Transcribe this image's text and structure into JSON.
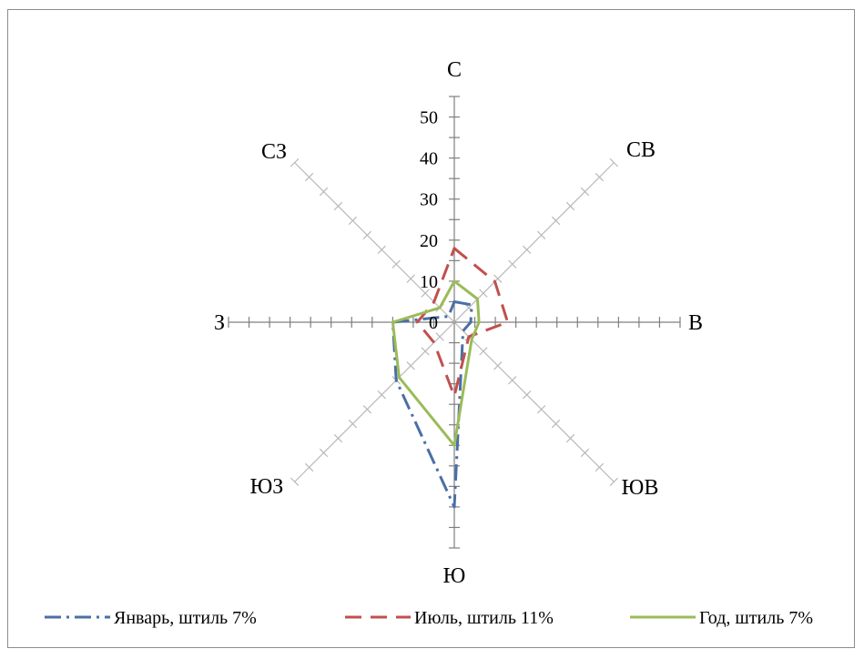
{
  "chart_data": {
    "type": "radar",
    "directions": [
      "С",
      "СВ",
      "В",
      "ЮВ",
      "Ю",
      "ЮЗ",
      "З",
      "СЗ"
    ],
    "rlim": [
      0,
      55
    ],
    "radial_ticks": [
      "0",
      "10",
      "20",
      "30",
      "40",
      "50"
    ],
    "radial_tick_values": [
      0,
      10,
      20,
      30,
      40,
      50
    ],
    "grid": false,
    "legend": "bottom",
    "series": [
      {
        "name": "Январь, штиль 7%",
        "values": [
          5,
          6,
          4,
          3,
          45,
          20,
          15,
          2
        ],
        "color": "#4a6fa5",
        "dash": "18,6,3,6"
      },
      {
        "name": "Июль, штиль 11%",
        "values": [
          18,
          14,
          13,
          5,
          18,
          7,
          9,
          7
        ],
        "color": "#c0504d",
        "dash": "18,10"
      },
      {
        "name": "Год, штиль 7%",
        "values": [
          10,
          8,
          6,
          6,
          30,
          19,
          15,
          5
        ],
        "color": "#9bbb59",
        "dash": ""
      }
    ]
  }
}
